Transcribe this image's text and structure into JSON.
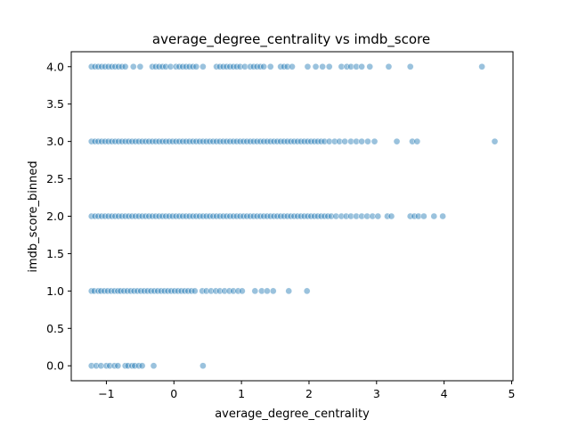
{
  "chart_data": {
    "type": "scatter",
    "title": "average_degree_centrality vs imdb_score",
    "xlabel": "average_degree_centrality",
    "ylabel": "imdb_score_binned",
    "xlim": [
      -1.52,
      5.02
    ],
    "ylim": [
      -0.2,
      4.2
    ],
    "xticks": [
      -1,
      0,
      1,
      2,
      3,
      4,
      5
    ],
    "yticks": [
      0.0,
      0.5,
      1.0,
      1.5,
      2.0,
      2.5,
      3.0,
      3.5,
      4.0
    ],
    "xtick_labels": [
      "−1",
      "0",
      "1",
      "2",
      "3",
      "4",
      "5"
    ],
    "ytick_labels": [
      "0.0",
      "0.5",
      "1.0",
      "1.5",
      "2.0",
      "2.5",
      "3.0",
      "3.5",
      "4.0"
    ],
    "grid": false,
    "marker_color": "#1f77b4",
    "marker_alpha": 0.45,
    "points": [
      {
        "y": 0,
        "x": [
          -1.22,
          -1.15,
          -1.08,
          -1.0,
          -0.95,
          -0.88,
          -0.83,
          -0.72,
          -0.68,
          -0.62,
          -0.58,
          -0.52,
          -0.47,
          -0.3,
          0.43
        ]
      },
      {
        "y": 1,
        "x": [
          -1.22,
          -1.18,
          -1.12,
          -1.08,
          -1.03,
          -0.98,
          -0.93,
          -0.88,
          -0.83,
          -0.79,
          -0.74,
          -0.69,
          -0.64,
          -0.59,
          -0.54,
          -0.49,
          -0.44,
          -0.39,
          -0.34,
          -0.29,
          -0.24,
          -0.19,
          -0.14,
          -0.09,
          -0.04,
          0.01,
          0.06,
          0.11,
          0.16,
          0.21,
          0.26,
          0.31,
          0.42,
          0.48,
          0.55,
          0.62,
          0.68,
          0.75,
          0.82,
          0.88,
          0.95,
          1.01,
          1.2,
          1.3,
          1.38,
          1.47,
          1.7,
          1.97
        ]
      },
      {
        "y": 2,
        "x": [
          -1.22,
          -1.17,
          -1.12,
          -1.07,
          -1.02,
          -0.97,
          -0.92,
          -0.87,
          -0.82,
          -0.77,
          -0.72,
          -0.67,
          -0.62,
          -0.57,
          -0.52,
          -0.47,
          -0.42,
          -0.37,
          -0.32,
          -0.27,
          -0.22,
          -0.17,
          -0.12,
          -0.07,
          -0.02,
          0.03,
          0.08,
          0.13,
          0.18,
          0.23,
          0.28,
          0.33,
          0.38,
          0.43,
          0.48,
          0.53,
          0.58,
          0.63,
          0.68,
          0.73,
          0.78,
          0.83,
          0.88,
          0.93,
          0.98,
          1.03,
          1.08,
          1.13,
          1.18,
          1.23,
          1.28,
          1.33,
          1.38,
          1.43,
          1.48,
          1.53,
          1.58,
          1.63,
          1.68,
          1.73,
          1.78,
          1.83,
          1.88,
          1.93,
          1.98,
          2.03,
          2.08,
          2.13,
          2.18,
          2.23,
          2.28,
          2.33,
          2.4,
          2.48,
          2.55,
          2.62,
          2.7,
          2.78,
          2.86,
          2.94,
          3.02,
          3.16,
          3.22,
          3.5,
          3.56,
          3.62,
          3.7,
          3.85,
          3.98
        ]
      },
      {
        "y": 3,
        "x": [
          -1.22,
          -1.17,
          -1.12,
          -1.07,
          -1.02,
          -0.97,
          -0.92,
          -0.87,
          -0.82,
          -0.77,
          -0.72,
          -0.67,
          -0.62,
          -0.57,
          -0.52,
          -0.47,
          -0.42,
          -0.37,
          -0.32,
          -0.27,
          -0.22,
          -0.17,
          -0.12,
          -0.07,
          -0.02,
          0.03,
          0.08,
          0.13,
          0.18,
          0.23,
          0.28,
          0.33,
          0.38,
          0.43,
          0.48,
          0.53,
          0.58,
          0.63,
          0.68,
          0.73,
          0.78,
          0.83,
          0.88,
          0.93,
          0.98,
          1.03,
          1.08,
          1.13,
          1.18,
          1.23,
          1.28,
          1.33,
          1.38,
          1.43,
          1.48,
          1.53,
          1.58,
          1.63,
          1.68,
          1.73,
          1.78,
          1.83,
          1.88,
          1.93,
          1.98,
          2.03,
          2.08,
          2.13,
          2.18,
          2.23,
          2.3,
          2.38,
          2.45,
          2.53,
          2.62,
          2.7,
          2.78,
          2.87,
          2.97,
          3.3,
          3.53,
          3.6,
          4.75
        ]
      },
      {
        "y": 4,
        "x": [
          -1.22,
          -1.17,
          -1.12,
          -1.07,
          -1.02,
          -0.97,
          -0.92,
          -0.87,
          -0.82,
          -0.77,
          -0.72,
          -0.6,
          -0.5,
          -0.32,
          -0.27,
          -0.22,
          -0.17,
          -0.12,
          -0.05,
          0.03,
          0.08,
          0.13,
          0.18,
          0.23,
          0.28,
          0.33,
          0.43,
          0.63,
          0.68,
          0.73,
          0.78,
          0.83,
          0.88,
          0.93,
          0.98,
          1.05,
          1.13,
          1.18,
          1.23,
          1.28,
          1.33,
          1.43,
          1.58,
          1.63,
          1.68,
          1.75,
          1.98,
          2.1,
          2.2,
          2.3,
          2.48,
          2.56,
          2.62,
          2.7,
          2.78,
          2.9,
          3.18,
          3.5,
          4.56
        ]
      }
    ]
  }
}
